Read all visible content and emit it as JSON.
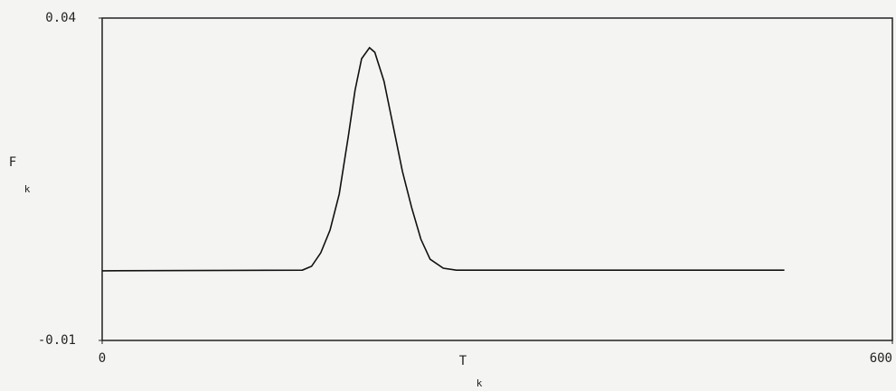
{
  "chart_data": {
    "type": "line",
    "xlabel": "T",
    "xlabel_subscript": "k",
    "ylabel": "F",
    "ylabel_subscript": "k",
    "x": [
      0,
      152,
      159,
      166,
      173,
      180,
      187,
      192,
      197,
      203,
      207,
      214,
      221,
      228,
      235,
      242,
      249,
      259,
      269,
      518
    ],
    "series": [
      {
        "color": "#111111",
        "values": [
          0.0008,
          0.0009,
          0.0015,
          0.0036,
          0.0071,
          0.0127,
          0.0218,
          0.0288,
          0.0337,
          0.0354,
          0.0347,
          0.0302,
          0.0232,
          0.0162,
          0.0106,
          0.0057,
          0.0026,
          0.0012,
          0.0009,
          0.0009
        ]
      }
    ],
    "xlim": [
      0,
      600
    ],
    "xticks": [
      0,
      600
    ],
    "ylim": [
      -0.01,
      0.04
    ],
    "yticks": [
      -0.01,
      0.04
    ]
  }
}
